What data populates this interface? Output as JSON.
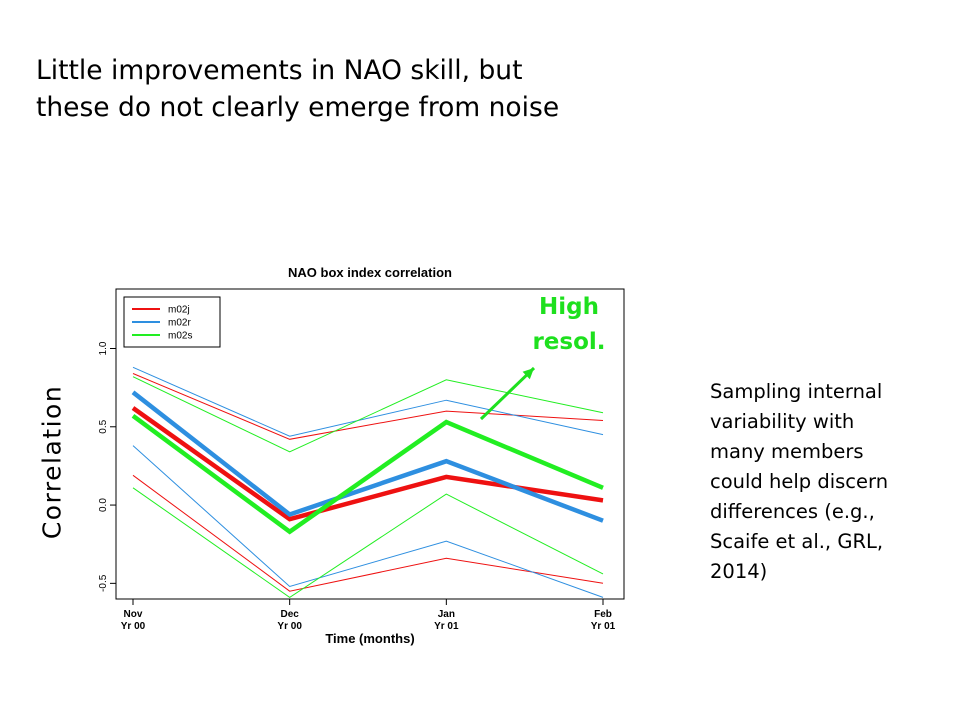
{
  "slide": {
    "title_line1": "Little improvements in NAO skill, but",
    "title_line2": "these do not clearly emerge from noise",
    "note": [
      "Sampling internal",
      "variability with",
      "many members",
      "could help discern",
      "differences (e.g.,",
      "Scaife et al., GRL,",
      "2014)"
    ],
    "ylabel_big": "Correlation",
    "annotation": [
      "High",
      "resol."
    ],
    "annotation_color": "#1ee01e"
  },
  "chart_data": {
    "type": "line",
    "title": "NAO box index correlation",
    "xlabel": "Time (months)",
    "categories": [
      [
        "Nov",
        "Yr 00"
      ],
      [
        "Dec",
        "Yr 00"
      ],
      [
        "Jan",
        "Yr 01"
      ],
      [
        "Feb",
        "Yr 01"
      ]
    ],
    "yticks": [
      -0.5,
      0.0,
      0.5,
      1.0
    ],
    "ytick_labels": [
      "-0.5",
      "0.0",
      "0.5",
      "1.0"
    ],
    "ylim": [
      -0.6,
      1.38
    ],
    "legend": {
      "placement": "top-left",
      "entries": [
        "m02j",
        "m02r",
        "m02s"
      ]
    },
    "colors": {
      "m02j": "#ee1111",
      "m02r": "#2e8fe0",
      "m02s": "#22ee22"
    },
    "series": [
      {
        "name": "m02j",
        "values": [
          0.62,
          -0.09,
          0.18,
          0.03
        ]
      },
      {
        "name": "m02r",
        "values": [
          0.72,
          -0.06,
          0.28,
          -0.1
        ]
      },
      {
        "name": "m02s",
        "values": [
          0.57,
          -0.17,
          0.53,
          0.11
        ]
      }
    ],
    "bounds": [
      {
        "of": "m02j",
        "upper": [
          0.84,
          0.42,
          0.6,
          0.54
        ],
        "lower": [
          0.19,
          -0.55,
          -0.34,
          -0.5
        ]
      },
      {
        "of": "m02r",
        "upper": [
          0.88,
          0.44,
          0.67,
          0.45
        ],
        "lower": [
          0.38,
          -0.52,
          -0.23,
          -0.59
        ]
      },
      {
        "of": "m02s",
        "upper": [
          0.82,
          0.34,
          0.8,
          0.59
        ],
        "lower": [
          0.11,
          -0.59,
          0.07,
          -0.44
        ]
      }
    ]
  }
}
